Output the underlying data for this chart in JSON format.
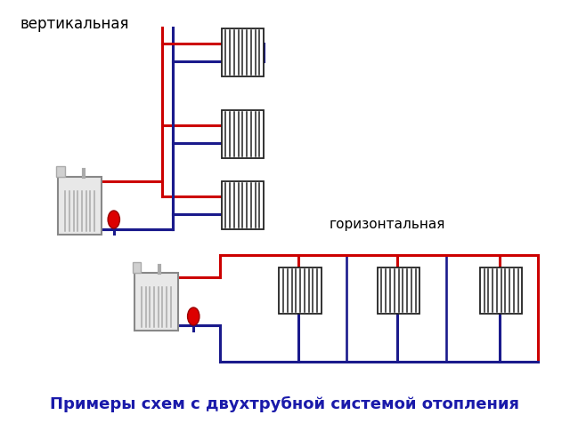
{
  "title": "Примеры схем с двухтрубной системой отопления",
  "title_color": "#1a1aaa",
  "title_fontsize": 13,
  "label_vertical": "вертикальная",
  "label_horizontal": "горизонтальная",
  "bg_color": "#ffffff",
  "red": "#cc0000",
  "blue": "#1a1a8c",
  "lw_pipe": 2.2,
  "rad_color": "#222222",
  "boiler_body": "#e0e0e0",
  "boiler_edge": "#999999",
  "pump_color": "#dd0000"
}
